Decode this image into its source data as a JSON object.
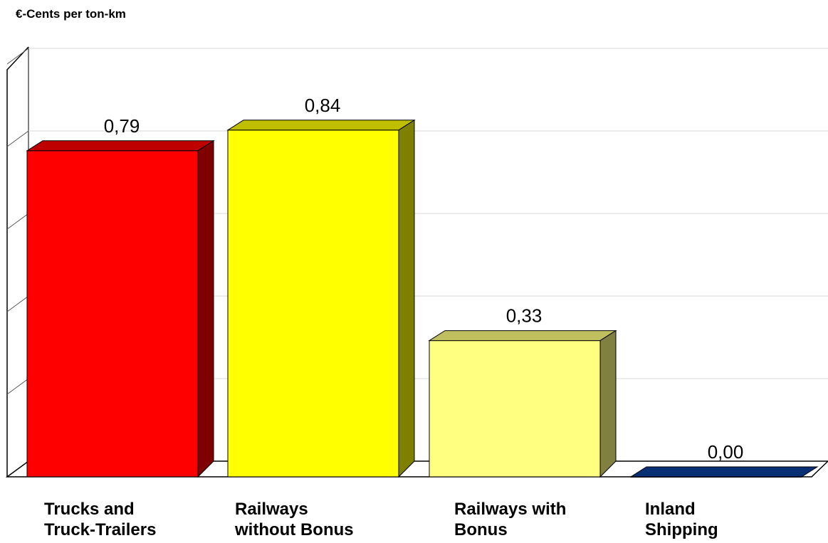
{
  "chart_data": {
    "type": "bar",
    "title": "",
    "xlabel": "",
    "ylabel": "€-Cents per ton-km",
    "ylim": [
      0,
      1
    ],
    "grid": true,
    "legend": "none",
    "categories": [
      [
        "Trucks and",
        "Truck-Trailers"
      ],
      [
        "Railways",
        "without Bonus"
      ],
      [
        "Railways with",
        "Bonus"
      ],
      [
        "Inland",
        "Shipping"
      ]
    ],
    "values": [
      0.79,
      0.84,
      0.33,
      0.0
    ],
    "value_labels": [
      "0,79",
      "0,84",
      "0,33",
      "0,00"
    ],
    "colors": [
      "#ff0000",
      "#ffff00",
      "#ffff80",
      "#0a3d9a"
    ]
  }
}
